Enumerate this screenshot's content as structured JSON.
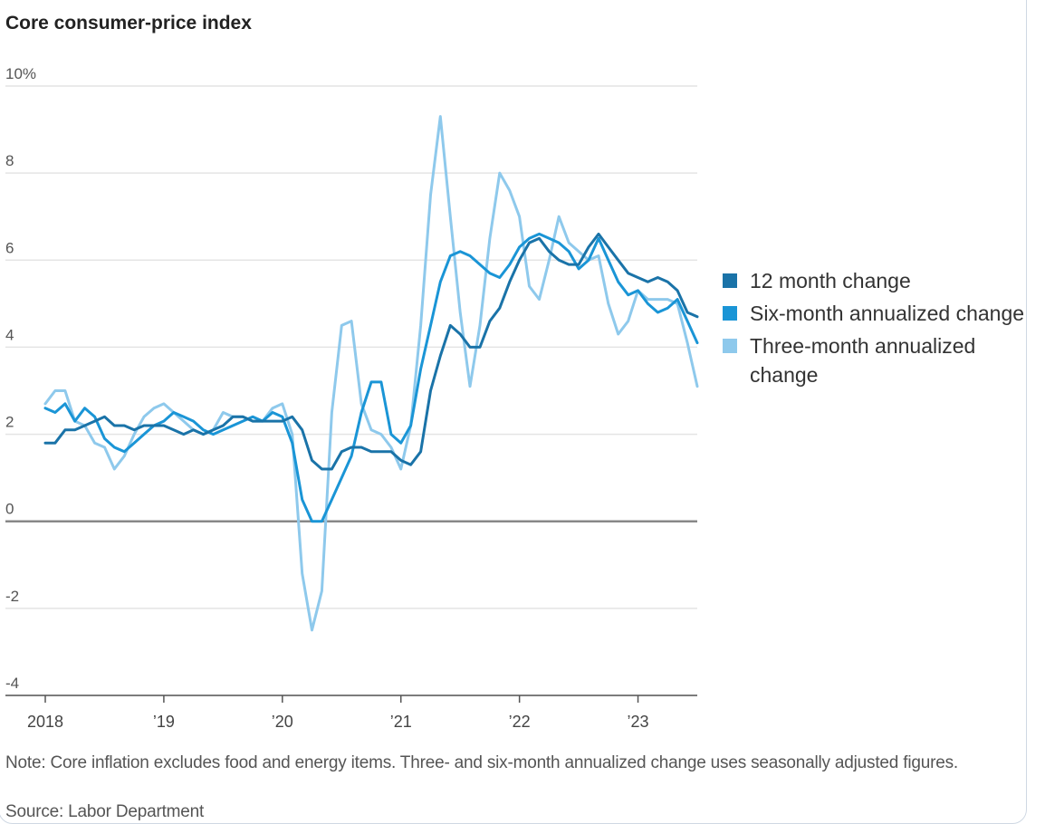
{
  "chart_data": {
    "type": "line",
    "title": "Core consumer-price index",
    "y_unit_label": "10%",
    "ylim": [
      -4,
      10
    ],
    "yticks": [
      -4,
      -2,
      0,
      2,
      4,
      6,
      8,
      10
    ],
    "ytick_labels": [
      "-4",
      "-2",
      "0",
      "2",
      "4",
      "6",
      "8",
      "10%"
    ],
    "xlim": [
      2018.0,
      2023.5
    ],
    "xticks": [
      2018,
      2019,
      2020,
      2021,
      2022,
      2023
    ],
    "xtick_labels": [
      "2018",
      "’19",
      "’20",
      "’21",
      "’22",
      "’23"
    ],
    "grid": true,
    "legend_position": "right",
    "series": [
      {
        "name": "12 month change",
        "color": "#1a73a8",
        "x": [
          2018.0,
          2018.083,
          2018.167,
          2018.25,
          2018.333,
          2018.417,
          2018.5,
          2018.583,
          2018.667,
          2018.75,
          2018.833,
          2018.917,
          2019.0,
          2019.083,
          2019.167,
          2019.25,
          2019.333,
          2019.417,
          2019.5,
          2019.583,
          2019.667,
          2019.75,
          2019.833,
          2019.917,
          2020.0,
          2020.083,
          2020.167,
          2020.25,
          2020.333,
          2020.417,
          2020.5,
          2020.583,
          2020.667,
          2020.75,
          2020.833,
          2020.917,
          2021.0,
          2021.083,
          2021.167,
          2021.25,
          2021.333,
          2021.417,
          2021.5,
          2021.583,
          2021.667,
          2021.75,
          2021.833,
          2021.917,
          2022.0,
          2022.083,
          2022.167,
          2022.25,
          2022.333,
          2022.417,
          2022.5,
          2022.583,
          2022.667,
          2022.75,
          2022.833,
          2022.917,
          2023.0,
          2023.083,
          2023.167,
          2023.25,
          2023.333,
          2023.417,
          2023.5
        ],
        "values": [
          1.8,
          1.8,
          2.1,
          2.1,
          2.2,
          2.3,
          2.4,
          2.2,
          2.2,
          2.1,
          2.2,
          2.2,
          2.2,
          2.1,
          2.0,
          2.1,
          2.0,
          2.1,
          2.2,
          2.4,
          2.4,
          2.3,
          2.3,
          2.3,
          2.3,
          2.4,
          2.1,
          1.4,
          1.2,
          1.2,
          1.6,
          1.7,
          1.7,
          1.6,
          1.6,
          1.6,
          1.4,
          1.3,
          1.6,
          3.0,
          3.8,
          4.5,
          4.3,
          4.0,
          4.0,
          4.6,
          4.9,
          5.5,
          6.0,
          6.4,
          6.5,
          6.2,
          6.0,
          5.9,
          5.9,
          6.3,
          6.6,
          6.3,
          6.0,
          5.7,
          5.6,
          5.5,
          5.6,
          5.5,
          5.3,
          4.8,
          4.7
        ]
      },
      {
        "name": "Six-month annualized change",
        "color": "#1a95d6",
        "x": [
          2018.0,
          2018.083,
          2018.167,
          2018.25,
          2018.333,
          2018.417,
          2018.5,
          2018.583,
          2018.667,
          2018.75,
          2018.833,
          2018.917,
          2019.0,
          2019.083,
          2019.167,
          2019.25,
          2019.333,
          2019.417,
          2019.5,
          2019.583,
          2019.667,
          2019.75,
          2019.833,
          2019.917,
          2020.0,
          2020.083,
          2020.167,
          2020.25,
          2020.333,
          2020.417,
          2020.5,
          2020.583,
          2020.667,
          2020.75,
          2020.833,
          2020.917,
          2021.0,
          2021.083,
          2021.167,
          2021.25,
          2021.333,
          2021.417,
          2021.5,
          2021.583,
          2021.667,
          2021.75,
          2021.833,
          2021.917,
          2022.0,
          2022.083,
          2022.167,
          2022.25,
          2022.333,
          2022.417,
          2022.5,
          2022.583,
          2022.667,
          2022.75,
          2022.833,
          2022.917,
          2023.0,
          2023.083,
          2023.167,
          2023.25,
          2023.333,
          2023.417,
          2023.5
        ],
        "values": [
          2.6,
          2.5,
          2.7,
          2.3,
          2.6,
          2.4,
          1.9,
          1.7,
          1.6,
          1.8,
          2.0,
          2.2,
          2.3,
          2.5,
          2.4,
          2.3,
          2.1,
          2.0,
          2.1,
          2.2,
          2.3,
          2.4,
          2.3,
          2.5,
          2.4,
          1.8,
          0.5,
          0.0,
          0.0,
          0.5,
          1.0,
          1.5,
          2.5,
          3.2,
          3.2,
          2.0,
          1.8,
          2.2,
          3.5,
          4.5,
          5.5,
          6.1,
          6.2,
          6.1,
          5.9,
          5.7,
          5.6,
          5.9,
          6.3,
          6.5,
          6.6,
          6.5,
          6.4,
          6.2,
          5.8,
          6.0,
          6.5,
          6.0,
          5.5,
          5.2,
          5.3,
          5.0,
          4.8,
          4.9,
          5.1,
          4.6,
          4.1
        ]
      },
      {
        "name": "Three-month annualized change",
        "color": "#8ec9ec",
        "x": [
          2018.0,
          2018.083,
          2018.167,
          2018.25,
          2018.333,
          2018.417,
          2018.5,
          2018.583,
          2018.667,
          2018.75,
          2018.833,
          2018.917,
          2019.0,
          2019.083,
          2019.167,
          2019.25,
          2019.333,
          2019.417,
          2019.5,
          2019.583,
          2019.667,
          2019.75,
          2019.833,
          2019.917,
          2020.0,
          2020.083,
          2020.167,
          2020.25,
          2020.333,
          2020.417,
          2020.5,
          2020.583,
          2020.667,
          2020.75,
          2020.833,
          2020.917,
          2021.0,
          2021.083,
          2021.167,
          2021.25,
          2021.333,
          2021.417,
          2021.5,
          2021.583,
          2021.667,
          2021.75,
          2021.833,
          2021.917,
          2022.0,
          2022.083,
          2022.167,
          2022.25,
          2022.333,
          2022.417,
          2022.5,
          2022.583,
          2022.667,
          2022.75,
          2022.833,
          2022.917,
          2023.0,
          2023.083,
          2023.167,
          2023.25,
          2023.333,
          2023.417,
          2023.5
        ],
        "values": [
          2.7,
          3.0,
          3.0,
          2.3,
          2.2,
          1.8,
          1.7,
          1.2,
          1.5,
          2.0,
          2.4,
          2.6,
          2.7,
          2.5,
          2.3,
          2.1,
          2.0,
          2.1,
          2.5,
          2.4,
          2.4,
          2.3,
          2.3,
          2.6,
          2.7,
          2.0,
          -1.2,
          -2.5,
          -1.6,
          2.5,
          4.5,
          4.6,
          2.7,
          2.1,
          2.0,
          1.7,
          1.2,
          2.2,
          4.5,
          7.5,
          9.3,
          7.0,
          4.8,
          3.1,
          4.5,
          6.5,
          8.0,
          7.6,
          7.0,
          5.4,
          5.1,
          6.0,
          7.0,
          6.4,
          6.2,
          6.0,
          6.1,
          5.0,
          4.3,
          4.6,
          5.3,
          5.1,
          5.1,
          5.1,
          5.0,
          4.1,
          3.1
        ]
      }
    ]
  },
  "note": "Note: Core inflation excludes food and energy items. Three- and six-month annualized change uses seasonally adjusted figures.",
  "source": "Source: Labor Department",
  "legend": {
    "items": [
      {
        "label": "12 month change",
        "color": "#1a73a8"
      },
      {
        "label": "Six-month annualized change",
        "color": "#1a95d6"
      },
      {
        "label": "Three-month annualized change",
        "color": "#8ec9ec"
      }
    ]
  }
}
